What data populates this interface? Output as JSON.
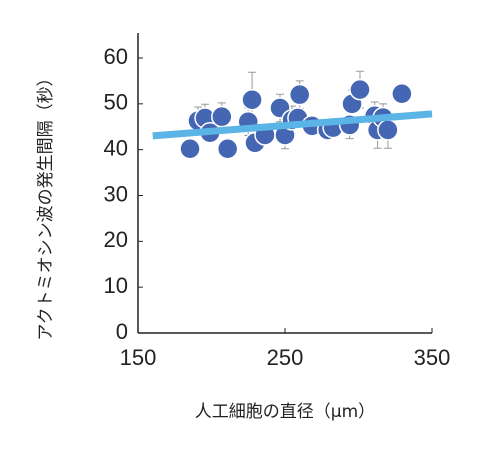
{
  "chart_data": {
    "type": "scatter",
    "x_label": "人工細胞の直径（μm）",
    "y_label": "アクトミオシン波の発生間隔（秒）",
    "x": [
      185.4,
      190.8,
      195.6,
      199,
      207,
      211,
      225,
      227.6,
      229.6,
      236.4,
      246.6,
      250,
      254.8,
      260,
      258.8,
      268.4,
      279,
      282.7,
      294,
      295.6,
      301,
      311,
      313,
      316.7,
      320,
      329.5
    ],
    "values": [
      40.2,
      46.3,
      46.9,
      43.7,
      47.2,
      40.2,
      46.1,
      50.9,
      41.5,
      43.2,
      49.1,
      43.2,
      46.5,
      52,
      46.9,
      45.2,
      44.3,
      44.8,
      45.4,
      50,
      53.1,
      47.4,
      44.3,
      47,
      44.3,
      52.2
    ],
    "errors": [
      2,
      3,
      3,
      2,
      3,
      2,
      3,
      6,
      2,
      2,
      3,
      3,
      3,
      3,
      2,
      2,
      2,
      2,
      3,
      3,
      4,
      3,
      4,
      3,
      4,
      2
    ],
    "color": "#4466b3",
    "trendline": {
      "color": "#5ab4e5",
      "x": [
        160,
        350
      ],
      "values": [
        43,
        47.8
      ]
    },
    "xlim": [
      150,
      350
    ],
    "xticks": [
      150,
      250,
      350
    ],
    "ylim": [
      0,
      60
    ],
    "yticks": [
      0,
      10,
      20,
      30,
      40,
      50,
      60
    ]
  }
}
